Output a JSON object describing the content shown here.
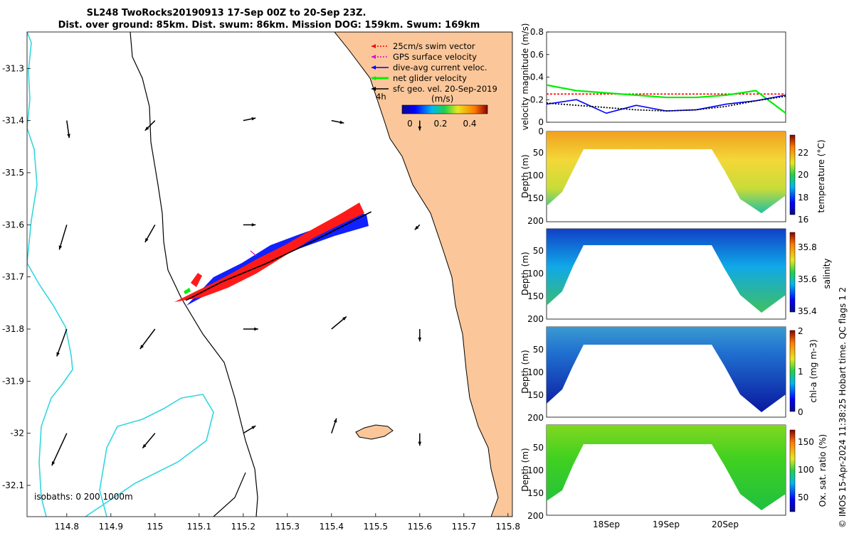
{
  "title": {
    "line1": "SL248 TwoRocks20190913 17-Sep 00Z to 20-Sep 23Z.",
    "line2": "Dist. over ground: 85km. Dist. swum: 86km. Mission DOG: 159km. Swum: 169km"
  },
  "colors": {
    "land": "#fbc79a",
    "isobath_0": "#000000",
    "isobath_200": "#000000",
    "isobath_1000": "#33d6e0",
    "swim_vector": "#ff0000",
    "gps_velocity": "#e000e0",
    "dive_avg_current": "#0000ff",
    "net_glider_velocity": "#00ee00",
    "sfc_geo_vel": "#000000"
  },
  "map": {
    "legend": [
      {
        "label": "25cm/s swim vector",
        "color": "#ff0000",
        "style": "dotted"
      },
      {
        "label": "GPS surface velocity",
        "color": "#e000e0",
        "style": "dotted"
      },
      {
        "label": "dive-avg current veloc.",
        "color": "#0000ff",
        "style": "solid"
      },
      {
        "label": "net glider velocity",
        "color": "#00ee00",
        "style": "thick"
      },
      {
        "label": "sfc geo. vel. 20-Sep-2019",
        "color": "#000000",
        "style": "solid"
      }
    ],
    "colorbar": {
      "label": "(m/s)",
      "ticks": [
        "0",
        "0.2",
        "0.4"
      ],
      "range": [
        0,
        0.5
      ]
    },
    "time_marker": "4h",
    "isobaths_label": "isobaths: 0   200  1000m",
    "xticks": [
      "114.8",
      "114.9",
      "115",
      "115.1",
      "115.2",
      "115.3",
      "115.4",
      "115.5",
      "115.6",
      "115.7",
      "115.8"
    ],
    "yticks": [
      "-31.3",
      "-31.4",
      "-31.5",
      "-31.6",
      "-31.7",
      "-31.8",
      "-31.9",
      "-32",
      "-32.1"
    ]
  },
  "panels": {
    "velocity": {
      "ylabel": "velocity magnitude (m/s)",
      "yticks": [
        "0",
        "0.2",
        "0.4",
        "0.6",
        "0.8"
      ]
    },
    "temperature": {
      "ylabel": "Depth (m)",
      "cbar_label": "temperature (°C)",
      "yticks": [
        "0",
        "50",
        "100",
        "150",
        "200"
      ],
      "cticks": [
        "22",
        "20",
        "18",
        "16"
      ]
    },
    "salinity": {
      "ylabel": "Depth (m)",
      "cbar_label": "salinity",
      "yticks": [
        "50",
        "100",
        "150",
        "200"
      ],
      "cticks": [
        "35.8",
        "35.6",
        "35.4"
      ]
    },
    "chla": {
      "ylabel": "Depth (m)",
      "cbar_label": "chl-a (mg m-3)",
      "yticks": [
        "50",
        "100",
        "150",
        "200"
      ],
      "cticks": [
        "2",
        "1",
        "0"
      ]
    },
    "oxygen": {
      "ylabel": "Depth (m)",
      "cbar_label": "Ox. sat. ratio (%)",
      "yticks": [
        "50",
        "100",
        "150",
        "200"
      ],
      "cticks": [
        "150",
        "100",
        "50"
      ]
    },
    "xticks": [
      "18Sep",
      "19Sep",
      "20Sep"
    ]
  },
  "footer": "© IMOS 15-Apr-2024 11:38:25 Hobart time. QC flags 1  2",
  "chart_data": [
    {
      "type": "scatter",
      "title": "SL248 TwoRocks20190913 17-Sep 00Z to 20-Sep 23Z.",
      "xlim": [
        114.71,
        115.81
      ],
      "ylim": [
        -32.16,
        -31.23
      ],
      "track": {
        "x": [
          115.07,
          115.15,
          115.25,
          115.35,
          115.42,
          115.49
        ],
        "y": [
          -31.745,
          -31.71,
          -31.675,
          -31.635,
          -31.605,
          -31.575
        ]
      },
      "surface_vectors": {
        "x": [
          114.8,
          115.0,
          115.2,
          115.4,
          115.6,
          114.8,
          115.0,
          115.2,
          115.6,
          114.8,
          115.0,
          115.2,
          115.4,
          115.6,
          114.8,
          115.0,
          115.2,
          115.4,
          115.6
        ],
        "y": [
          -31.4,
          -31.4,
          -31.4,
          -31.4,
          -31.4,
          -31.6,
          -31.6,
          -31.6,
          -31.6,
          -31.8,
          -31.8,
          -31.8,
          -31.8,
          -31.8,
          -32.0,
          -32.0,
          -32.0,
          -32.0,
          -32.0
        ],
        "u": [
          0.01,
          -0.04,
          0.05,
          0.05,
          0.0,
          -0.03,
          -0.04,
          0.05,
          -0.02,
          -0.04,
          -0.06,
          0.06,
          0.06,
          0.0,
          -0.06,
          -0.05,
          0.05,
          0.02,
          0.0
        ],
        "v": [
          -0.07,
          -0.04,
          0.01,
          -0.01,
          -0.04,
          -0.1,
          -0.07,
          0.0,
          -0.02,
          -0.11,
          -0.08,
          0.0,
          0.05,
          -0.05,
          -0.13,
          -0.06,
          0.03,
          0.06,
          -0.05
        ]
      }
    },
    {
      "type": "line",
      "xlabel": "",
      "ylabel": "velocity magnitude (m/s)",
      "ylim": [
        0,
        0.8
      ],
      "x": [
        0,
        0.5,
        1,
        1.5,
        2,
        2.5,
        3,
        3.5,
        4
      ],
      "series": [
        {
          "name": "25cm/s swim vector",
          "values": [
            0.25,
            0.25,
            0.25,
            0.25,
            0.25,
            0.25,
            0.25,
            0.25,
            0.25
          ]
        },
        {
          "name": "net glider velocity",
          "values": [
            0.33,
            0.28,
            0.26,
            0.24,
            0.22,
            0.22,
            0.24,
            0.28,
            0.08
          ]
        },
        {
          "name": "dive-avg current veloc.",
          "values": [
            0.16,
            0.2,
            0.08,
            0.15,
            0.1,
            0.11,
            0.16,
            0.19,
            0.24
          ]
        },
        {
          "name": "sfc geo. vel. 20-Sep-2019",
          "values": [
            0.17,
            0.15,
            0.13,
            0.11,
            0.1,
            0.11,
            0.14,
            0.19,
            0.23
          ]
        }
      ]
    }
  ]
}
